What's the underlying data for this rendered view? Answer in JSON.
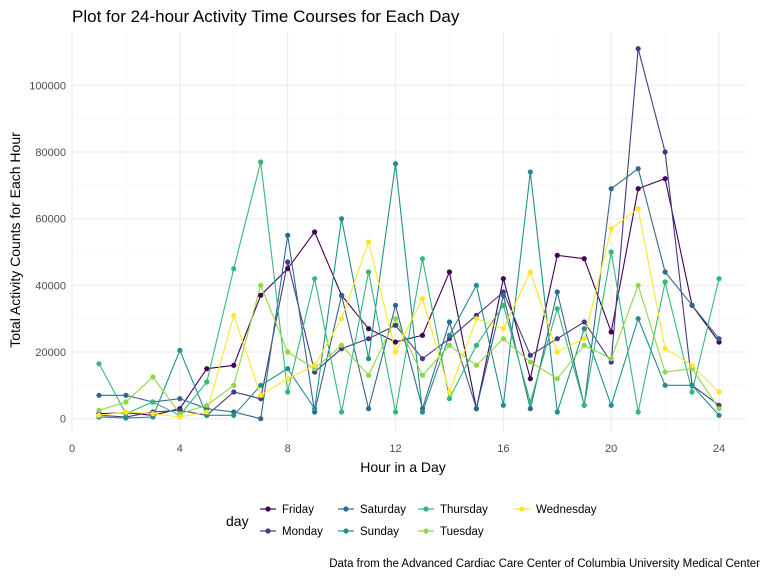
{
  "chart_data": {
    "type": "line",
    "title": "Plot for 24-hour Activity Time Courses for Each Day",
    "xlabel": "Hour in a Day",
    "ylabel": "Total Activity Counts for Each Hour",
    "caption": "Data from the Advanced Cardiac Care Center of Columbia University Medical Center",
    "xlim": [
      0,
      25
    ],
    "ylim": [
      -4000,
      116000
    ],
    "xticks": [
      0,
      4,
      8,
      12,
      16,
      20,
      24
    ],
    "yticks": [
      0,
      20000,
      40000,
      60000,
      80000,
      100000
    ],
    "grid": true,
    "legend": {
      "title": "day",
      "position": "bottom"
    },
    "x": [
      1,
      2,
      3,
      4,
      5,
      6,
      7,
      8,
      9,
      10,
      11,
      12,
      13,
      14,
      15,
      16,
      17,
      18,
      19,
      20,
      21,
      22,
      23,
      24
    ],
    "series": [
      {
        "name": "Friday",
        "color": "#440154",
        "values": [
          1500,
          1800,
          1000,
          3000,
          15000,
          16000,
          37000,
          45000,
          56000,
          37000,
          27000,
          23000,
          25000,
          44000,
          3000,
          42000,
          12000,
          49000,
          48000,
          26000,
          69000,
          72000,
          34000,
          23000
        ]
      },
      {
        "name": "Monday",
        "color": "#443A83",
        "values": [
          1000,
          500,
          2000,
          2500,
          1000,
          8000,
          6000,
          47000,
          14000,
          21000,
          24000,
          28000,
          18000,
          24000,
          31000,
          38000,
          19000,
          24000,
          29000,
          17000,
          111000,
          80000,
          10000,
          4000
        ]
      },
      {
        "name": "Saturday",
        "color": "#31688E",
        "values": [
          7000,
          7000,
          5000,
          6000,
          3000,
          2000,
          0,
          55000,
          2000,
          37000,
          3000,
          34000,
          3000,
          29000,
          3000,
          37000,
          3000,
          38000,
          4000,
          69000,
          75000,
          44000,
          34000,
          24000
        ]
      },
      {
        "name": "Sunday",
        "color": "#21908C",
        "values": [
          500,
          200,
          500,
          20500,
          1000,
          1000,
          10000,
          15000,
          3000,
          60000,
          18000,
          76500,
          2000,
          25000,
          40000,
          4000,
          74000,
          2000,
          27000,
          4000,
          30000,
          10000,
          10000,
          1000
        ]
      },
      {
        "name": "Thursday",
        "color": "#35B779",
        "values": [
          16500,
          1500,
          5000,
          1000,
          11000,
          45000,
          77000,
          8000,
          42000,
          2000,
          44000,
          2000,
          48000,
          6000,
          22000,
          34000,
          5000,
          33000,
          4000,
          50000,
          2000,
          41000,
          8000,
          42000
        ]
      },
      {
        "name": "Tuesday",
        "color": "#8FD744",
        "values": [
          2500,
          5000,
          12500,
          1500,
          4000,
          10000,
          40000,
          20000,
          15000,
          22000,
          13000,
          30000,
          13000,
          22000,
          16000,
          24000,
          17000,
          12000,
          22000,
          18000,
          40000,
          14000,
          15000,
          3000
        ]
      },
      {
        "name": "Wednesday",
        "color": "#FDE725",
        "values": [
          1000,
          2000,
          1500,
          500,
          2000,
          31000,
          7000,
          12000,
          16000,
          30000,
          53000,
          20000,
          36000,
          8000,
          30000,
          27000,
          44000,
          20000,
          24000,
          57000,
          63000,
          21000,
          16000,
          8000
        ]
      }
    ]
  }
}
